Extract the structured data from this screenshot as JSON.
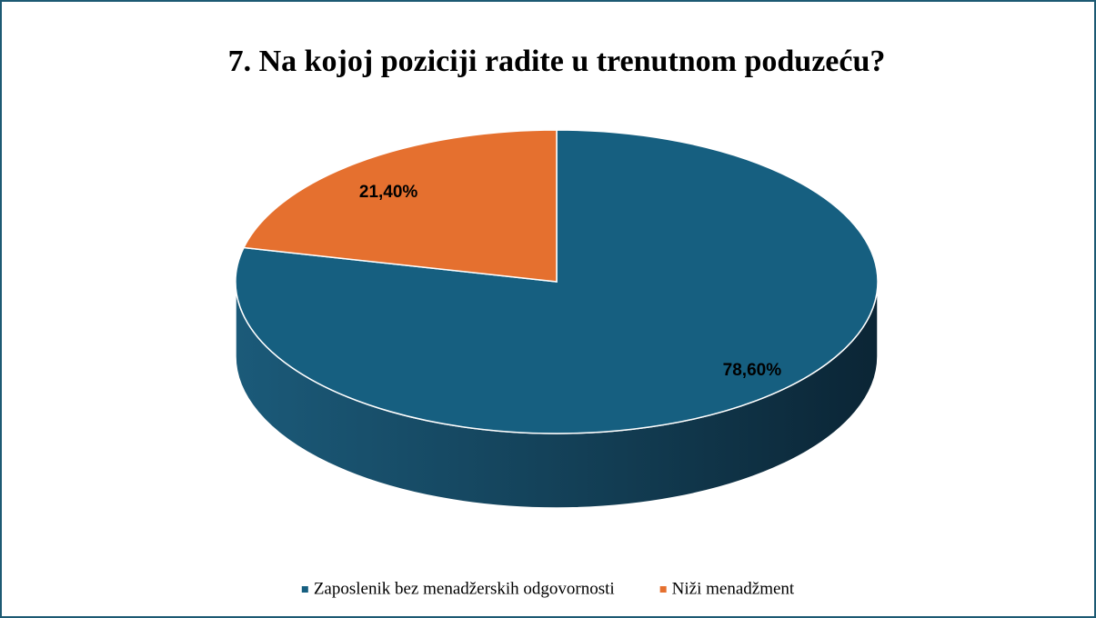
{
  "chart_data": {
    "type": "pie",
    "title": "7. Na kojoj poziciji radite u trenutnom poduzeću?",
    "categories": [
      "Zaposlenik bez menadžerskih odgovornosti",
      "Niži menadžment"
    ],
    "values": [
      78.6,
      21.4
    ],
    "value_labels": [
      "78,60%",
      "21,40%"
    ],
    "colors": [
      "#165f80",
      "#e5702f"
    ]
  }
}
